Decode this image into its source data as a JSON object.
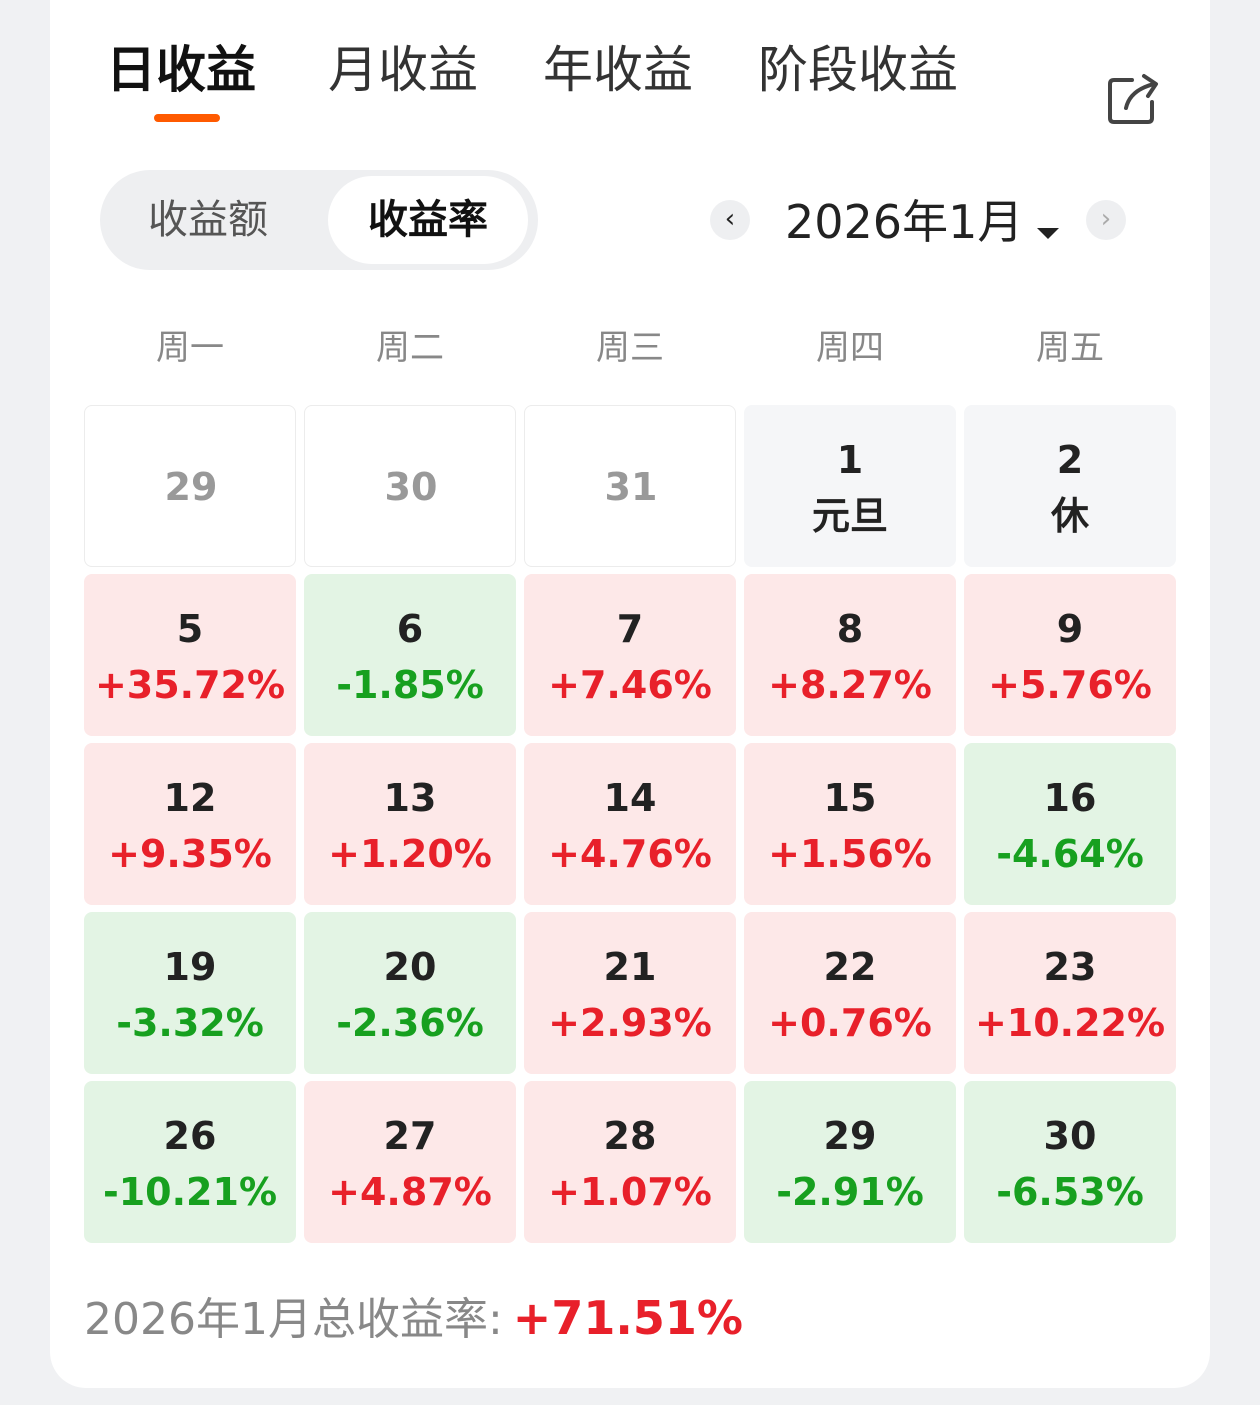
{
  "tabs": [
    {
      "label": "日收益",
      "active": true
    },
    {
      "label": "月收益",
      "active": false
    },
    {
      "label": "年收益",
      "active": false
    },
    {
      "label": "阶段收益",
      "active": false
    }
  ],
  "share_icon": "share-icon",
  "segmented": {
    "options": [
      "收益额",
      "收益率"
    ],
    "selected": "收益率"
  },
  "month_nav": {
    "current": "2026年1月",
    "prev_icon": "chevron-left-icon",
    "next_icon": "chevron-right-icon",
    "dropdown_icon": "caret-down-icon"
  },
  "weekdays": [
    "周一",
    "周二",
    "周三",
    "周四",
    "周五"
  ],
  "calendar": [
    [
      {
        "day": "29",
        "sub": "",
        "type": "empty"
      },
      {
        "day": "30",
        "sub": "",
        "type": "empty"
      },
      {
        "day": "31",
        "sub": "",
        "type": "empty"
      },
      {
        "day": "1",
        "sub": "元旦",
        "type": "holiday"
      },
      {
        "day": "2",
        "sub": "休",
        "type": "holiday"
      }
    ],
    [
      {
        "day": "5",
        "sub": "+35.72%",
        "type": "up"
      },
      {
        "day": "6",
        "sub": "-1.85%",
        "type": "down"
      },
      {
        "day": "7",
        "sub": "+7.46%",
        "type": "up"
      },
      {
        "day": "8",
        "sub": "+8.27%",
        "type": "up"
      },
      {
        "day": "9",
        "sub": "+5.76%",
        "type": "up"
      }
    ],
    [
      {
        "day": "12",
        "sub": "+9.35%",
        "type": "up"
      },
      {
        "day": "13",
        "sub": "+1.20%",
        "type": "up"
      },
      {
        "day": "14",
        "sub": "+4.76%",
        "type": "up"
      },
      {
        "day": "15",
        "sub": "+1.56%",
        "type": "up"
      },
      {
        "day": "16",
        "sub": "-4.64%",
        "type": "down"
      }
    ],
    [
      {
        "day": "19",
        "sub": "-3.32%",
        "type": "down"
      },
      {
        "day": "20",
        "sub": "-2.36%",
        "type": "down"
      },
      {
        "day": "21",
        "sub": "+2.93%",
        "type": "up"
      },
      {
        "day": "22",
        "sub": "+0.76%",
        "type": "up"
      },
      {
        "day": "23",
        "sub": "+10.22%",
        "type": "up"
      }
    ],
    [
      {
        "day": "26",
        "sub": "-10.21%",
        "type": "down"
      },
      {
        "day": "27",
        "sub": "+4.87%",
        "type": "up"
      },
      {
        "day": "28",
        "sub": "+1.07%",
        "type": "up"
      },
      {
        "day": "29",
        "sub": "-2.91%",
        "type": "down"
      },
      {
        "day": "30",
        "sub": "-6.53%",
        "type": "down"
      }
    ]
  ],
  "summary": {
    "label": "2026年1月总收益率:",
    "value": "+71.51%"
  },
  "colors": {
    "accent": "#ff5a00",
    "up_text": "#e8202a",
    "down_text": "#17a01f",
    "up_bg": "#fde8e8",
    "down_bg": "#e3f4e4"
  }
}
